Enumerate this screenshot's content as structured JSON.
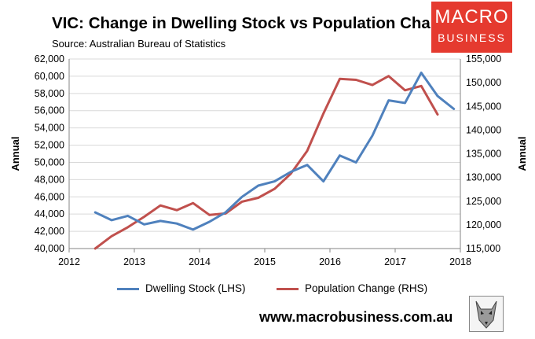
{
  "header": {
    "title": "VIC: Change in Dwelling Stock vs Population Change",
    "source": "Source: Australian Bureau of Statistics"
  },
  "logo": {
    "line1": "MACRO",
    "line2": "BUSINESS"
  },
  "footer": {
    "url": "www.macrobusiness.com.au"
  },
  "colors": {
    "dwelling": "#4f81bd",
    "population": "#c0504d",
    "logo_bg": "#e53a2f",
    "grid": "#d9d9d9"
  },
  "chart_data": {
    "type": "line",
    "title": "VIC: Change in Dwelling Stock vs Population Change",
    "xlabel": "",
    "ylabel": "Annual",
    "y2label": "Annual",
    "xlim": [
      2012,
      2018
    ],
    "x_ticks": [
      "2012",
      "2013",
      "2014",
      "2015",
      "2016",
      "2017",
      "2018"
    ],
    "ylim": [
      40000,
      62000
    ],
    "y_ticks": [
      "40,000",
      "42,000",
      "44,000",
      "46,000",
      "48,000",
      "50,000",
      "52,000",
      "54,000",
      "56,000",
      "58,000",
      "60,000",
      "62,000"
    ],
    "y2lim": [
      115000,
      155000
    ],
    "y2_ticks": [
      "115,000",
      "120,000",
      "125,000",
      "130,000",
      "135,000",
      "140,000",
      "145,000",
      "150,000",
      "155,000"
    ],
    "grid": "horizontal",
    "legend": "bottom",
    "series": [
      {
        "name": "Dwelling Stock (LHS)",
        "axis": "left",
        "x": [
          2012.4,
          2012.65,
          2012.9,
          2013.15,
          2013.4,
          2013.65,
          2013.9,
          2014.15,
          2014.4,
          2014.65,
          2014.9,
          2015.15,
          2015.4,
          2015.65,
          2015.9,
          2016.15,
          2016.4,
          2016.65,
          2016.9,
          2017.15,
          2017.4,
          2017.65,
          2017.9
        ],
        "values": [
          44200,
          43300,
          43800,
          42800,
          43200,
          42900,
          42200,
          43100,
          44200,
          46000,
          47300,
          47800,
          48900,
          49700,
          47800,
          50800,
          50000,
          53100,
          57200,
          56900,
          60400,
          57700,
          56200
        ]
      },
      {
        "name": "Population Change (RHS)",
        "axis": "right",
        "x": [
          2012.4,
          2012.65,
          2012.9,
          2013.15,
          2013.4,
          2013.65,
          2013.9,
          2014.15,
          2014.4,
          2014.65,
          2014.9,
          2015.15,
          2015.4,
          2015.65,
          2015.9,
          2016.15,
          2016.4,
          2016.65,
          2016.9,
          2017.15,
          2017.4,
          2017.65
        ],
        "values": [
          115000,
          117600,
          119500,
          121700,
          124100,
          123100,
          124600,
          122100,
          122400,
          124900,
          125700,
          127600,
          130800,
          135600,
          143500,
          150800,
          150600,
          149500,
          151400,
          148400,
          149300,
          143300
        ]
      }
    ]
  }
}
